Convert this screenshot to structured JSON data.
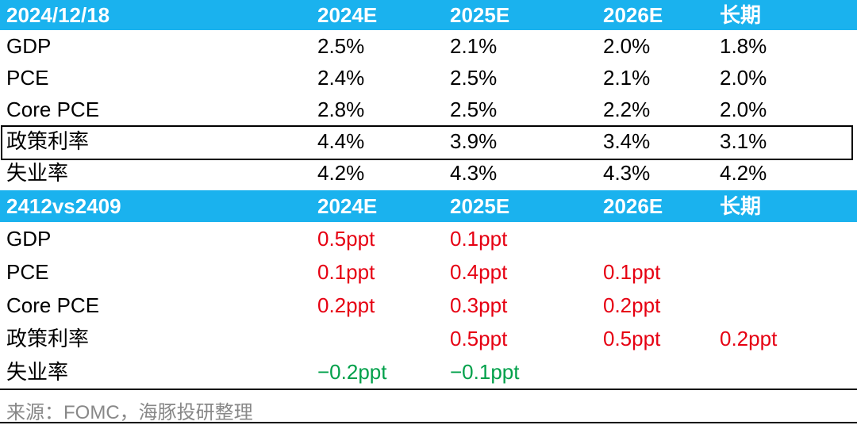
{
  "tables": [
    {
      "header": [
        "2024/12/18",
        "2024E",
        "2025E",
        "2026E",
        "长期"
      ],
      "rows": [
        [
          "GDP",
          "2.5%",
          "2.1%",
          "2.0%",
          "1.8%"
        ],
        [
          "PCE",
          "2.4%",
          "2.5%",
          "2.1%",
          "2.0%"
        ],
        [
          "Core PCE",
          "2.8%",
          "2.5%",
          "2.2%",
          "2.0%"
        ],
        [
          "政策利率",
          "4.4%",
          "3.9%",
          "3.4%",
          "3.1%"
        ],
        [
          "失业率",
          "4.2%",
          "4.3%",
          "4.3%",
          "4.2%"
        ]
      ]
    },
    {
      "header": [
        "2412vs2409",
        "2024E",
        "2025E",
        "2026E",
        "长期"
      ],
      "rows": [
        [
          "GDP",
          "0.5ppt",
          "0.1ppt",
          null,
          null
        ],
        [
          "PCE",
          "0.1ppt",
          "0.4ppt",
          "0.1ppt",
          null
        ],
        [
          "Core PCE",
          "0.2ppt",
          "0.3ppt",
          "0.2ppt",
          null
        ],
        [
          "政策利率",
          null,
          "0.5ppt",
          "0.5ppt",
          "0.2ppt"
        ],
        [
          "失业率",
          "−0.2ppt",
          "−0.1ppt",
          null,
          null
        ]
      ]
    }
  ],
  "source": "来源：FOMC，海豚投研整理"
}
